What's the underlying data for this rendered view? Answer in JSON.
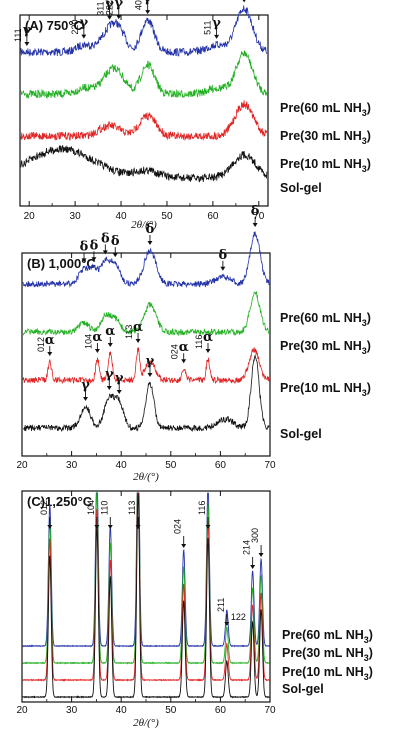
{
  "chart_data": [
    {
      "type": "line",
      "title": "(A) 750°C",
      "xlabel": "2θ/(°)",
      "xlim": [
        18,
        72
      ],
      "xticks": [
        20,
        30,
        40,
        50,
        60,
        70
      ],
      "series": [
        {
          "name": "Pre(60 mL NH₃)",
          "color": "#2433a8",
          "offset": 3,
          "peaks": [
            [
              31.9,
              0.12,
              1.5
            ],
            [
              37.5,
              0.35,
              2.0
            ],
            [
              39.5,
              0.25,
              1.5
            ],
            [
              45.8,
              0.55,
              1.4
            ],
            [
              60.8,
              0.12,
              2.0
            ],
            [
              66.8,
              0.75,
              1.8
            ]
          ]
        },
        {
          "name": "Pre(30 mL NH₃)",
          "color": "#22b022",
          "offset": 2,
          "peaks": [
            [
              32.0,
              0.1,
              1.6
            ],
            [
              37.5,
              0.3,
              2.0
            ],
            [
              39.5,
              0.22,
              1.6
            ],
            [
              45.8,
              0.5,
              1.5
            ],
            [
              60.8,
              0.1,
              2.0
            ],
            [
              66.8,
              0.7,
              1.8
            ]
          ]
        },
        {
          "name": "Pre(10 mL NH₃)",
          "color": "#e02424",
          "offset": 1,
          "peaks": [
            [
              37.5,
              0.18,
              2.2
            ],
            [
              45.8,
              0.35,
              1.8
            ],
            [
              66.8,
              0.55,
              2.0
            ]
          ]
        },
        {
          "name": "Sol-gel",
          "color": "#111111",
          "offset": 0,
          "peaks": [
            [
              27.0,
              0.5,
              7.0
            ],
            [
              45.8,
              0.12,
              2.5
            ],
            [
              66.8,
              0.4,
              2.5
            ]
          ]
        }
      ],
      "annotations": [
        {
          "phase": "γ",
          "hkl": "111",
          "x": 19.5
        },
        {
          "phase": "γ",
          "hkl": "220",
          "x": 31.9
        },
        {
          "phase": "γ",
          "hkl": "311",
          "x": 37.5
        },
        {
          "phase": "γ",
          "hkl": "222",
          "x": 39.5
        },
        {
          "phase": "γ",
          "hkl": "400",
          "x": 45.8
        },
        {
          "phase": "γ",
          "hkl": "511",
          "x": 60.8
        },
        {
          "phase": "γ",
          "hkl": "440",
          "x": 66.8
        }
      ]
    },
    {
      "type": "line",
      "title": "(B) 1,000°C",
      "xlabel": "2θ/(°)",
      "xlim": [
        20,
        70
      ],
      "xticks": [
        20,
        30,
        40,
        50,
        60,
        70
      ],
      "series": [
        {
          "name": "Pre(60 mL NH₃)",
          "color": "#2433a8",
          "offset": 3,
          "peaks": [
            [
              32.5,
              0.25,
              1.0
            ],
            [
              34.5,
              0.22,
              0.8
            ],
            [
              36.8,
              0.35,
              1.0
            ],
            [
              38.8,
              0.3,
              1.0
            ],
            [
              45.8,
              0.55,
              1.2
            ],
            [
              60.5,
              0.12,
              1.5
            ],
            [
              67.0,
              0.85,
              1.0
            ]
          ]
        },
        {
          "name": "Pre(30 mL NH₃)",
          "color": "#22b022",
          "offset": 2,
          "peaks": [
            [
              32.5,
              0.15,
              1.0
            ],
            [
              36.8,
              0.25,
              1.0
            ],
            [
              38.8,
              0.2,
              1.0
            ],
            [
              45.8,
              0.45,
              1.2
            ],
            [
              67.0,
              0.65,
              1.0
            ]
          ]
        },
        {
          "name": "Pre(10 mL NH₃)",
          "color": "#e02424",
          "offset": 1,
          "peaks": [
            [
              25.6,
              0.3,
              0.35
            ],
            [
              35.2,
              0.35,
              0.35
            ],
            [
              37.8,
              0.45,
              0.4
            ],
            [
              43.4,
              0.5,
              0.35
            ],
            [
              45.8,
              0.3,
              1.0
            ],
            [
              52.6,
              0.18,
              0.35
            ],
            [
              57.5,
              0.35,
              0.35
            ],
            [
              66.8,
              0.5,
              1.0
            ]
          ]
        },
        {
          "name": "Sol-gel",
          "color": "#111111",
          "offset": 0,
          "peaks": [
            [
              32.8,
              0.35,
              1.0
            ],
            [
              37.6,
              0.5,
              1.0
            ],
            [
              39.6,
              0.4,
              0.9
            ],
            [
              45.8,
              0.75,
              0.8
            ],
            [
              61.0,
              0.15,
              1.5
            ],
            [
              67.0,
              1.2,
              0.8
            ]
          ]
        }
      ],
      "annotations": [
        {
          "phase": "δ",
          "hkl": "",
          "x": 32.5,
          "target": "Pre(60 mL NH₃)"
        },
        {
          "phase": "δ",
          "hkl": "",
          "x": 34.5,
          "target": "Pre(60 mL NH₃)"
        },
        {
          "phase": "δ",
          "hkl": "",
          "x": 36.8,
          "target": "Pre(60 mL NH₃)"
        },
        {
          "phase": "δ",
          "hkl": "",
          "x": 38.8,
          "target": "Pre(60 mL NH₃)"
        },
        {
          "phase": "δ",
          "hkl": "",
          "x": 45.8,
          "target": "Pre(60 mL NH₃)"
        },
        {
          "phase": "δ",
          "hkl": "",
          "x": 60.5,
          "target": "Pre(60 mL NH₃)"
        },
        {
          "phase": "δ",
          "hkl": "",
          "x": 67.0,
          "target": "Pre(60 mL NH₃)"
        },
        {
          "phase": "α",
          "hkl": "012",
          "x": 25.6,
          "target": "Pre(10 mL NH₃)"
        },
        {
          "phase": "α",
          "hkl": "104",
          "x": 35.2,
          "target": "Pre(10 mL NH₃)"
        },
        {
          "phase": "α",
          "hkl": "",
          "x": 37.8,
          "target": "Pre(10 mL NH₃)"
        },
        {
          "phase": "α",
          "hkl": "113",
          "x": 43.4,
          "target": "Pre(10 mL NH₃)"
        },
        {
          "phase": "α",
          "hkl": "024",
          "x": 52.6,
          "target": "Pre(10 mL NH₃)"
        },
        {
          "phase": "α",
          "hkl": "116",
          "x": 57.5,
          "target": "Pre(10 mL NH₃)"
        },
        {
          "phase": "γ",
          "hkl": "",
          "x": 32.8,
          "target": "Sol-gel"
        },
        {
          "phase": "γ",
          "hkl": "",
          "x": 37.6,
          "target": "Sol-gel"
        },
        {
          "phase": "γ",
          "hkl": "",
          "x": 39.6,
          "target": "Sol-gel"
        },
        {
          "phase": "γ",
          "hkl": "",
          "x": 45.8,
          "target": "Sol-gel"
        }
      ]
    },
    {
      "type": "line",
      "title": "(C)1,250°C",
      "xlabel": "2θ/(°)",
      "xlim": [
        20,
        70
      ],
      "xticks": [
        20,
        30,
        40,
        50,
        60,
        70
      ],
      "series": [
        {
          "name": "Pre(60 mL NH₃)",
          "color": "#2433a8",
          "offset": 3
        },
        {
          "name": "Pre(30 mL NH₃)",
          "color": "#22b022",
          "offset": 2
        },
        {
          "name": "Pre(10 mL NH₃)",
          "color": "#e02424",
          "offset": 1
        },
        {
          "name": "Sol-gel",
          "color": "#111111",
          "offset": 0
        }
      ],
      "peaks": [
        {
          "hkl": "012",
          "x": 25.6,
          "height": 4.7
        },
        {
          "hkl": "104",
          "x": 35.1,
          "height": 5.7
        },
        {
          "hkl": "110",
          "x": 37.8,
          "height": 4.0
        },
        {
          "hkl": "113",
          "x": 43.4,
          "height": 6.8
        },
        {
          "hkl": "024",
          "x": 52.6,
          "height": 3.2
        },
        {
          "hkl": "116",
          "x": 57.5,
          "height": 5.3
        },
        {
          "hkl": "211",
          "x": 61.3,
          "height": 0.6
        },
        {
          "hkl": "122",
          "x": 61.3,
          "height": 0.6
        },
        {
          "hkl": "214",
          "x": 66.5,
          "height": 2.5
        },
        {
          "hkl": "300",
          "x": 68.2,
          "height": 2.9
        }
      ]
    }
  ]
}
